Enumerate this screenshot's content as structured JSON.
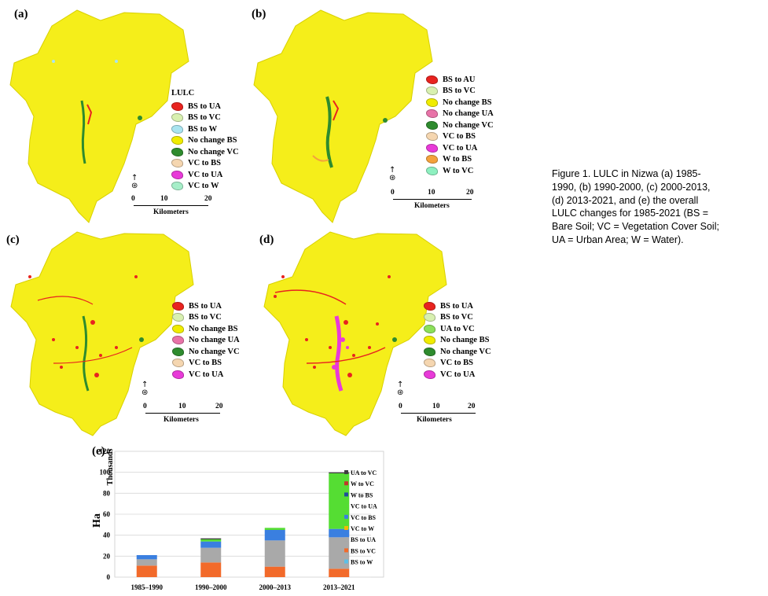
{
  "caption": "Figure 1. LULC in Nizwa (a) 1985-1990, (b) 1990-2000, (c) 2000-2013, (d) 2013-2021, and (e) the overall LULC changes for 1985-2021 (BS = Bare Soil; VC = Vegetation Cover Soil; UA = Urban Area; W = Water).",
  "colors": {
    "map_base": "#f5ee1a",
    "BS to UA": "#e8231f",
    "BS to AU": "#e8231f",
    "BS to VC": "#d8f0b0",
    "BS to W": "#a9e4f0",
    "No change BS": "#f0ec00",
    "No change VC": "#2e8b2e",
    "No change UA": "#e873a8",
    "VC to BS": "#f5d6b0",
    "VC to UA": "#e83ad8",
    "VC to W": "#a6eec8",
    "W to BS": "#f4a23c",
    "W to VC": "#8ef0c0",
    "UA to VC": "#8ce05a"
  },
  "maps": [
    {
      "label": "(a)",
      "legend_title": "LULC",
      "legend": [
        "BS to UA",
        "BS to VC",
        "BS to W",
        "No change BS",
        "No change VC",
        "VC to BS",
        "VC to UA",
        "VC to W"
      ],
      "scale_ticks": [
        "0",
        "10",
        "20"
      ],
      "scale_unit": "Kilometers"
    },
    {
      "label": "(b)",
      "legend_title": "",
      "legend": [
        "BS to AU",
        "BS to VC",
        "No change BS",
        "No change UA",
        "No change VC",
        "VC to BS",
        "VC to UA",
        "W to BS",
        "W to VC"
      ],
      "scale_ticks": [
        "0",
        "10",
        "20"
      ],
      "scale_unit": "Kilometers"
    },
    {
      "label": "(c)",
      "legend_title": "",
      "legend": [
        "BS to UA",
        "BS to VC",
        "No change BS",
        "No change UA",
        "No change VC",
        "VC to BS",
        "VC to UA"
      ],
      "scale_ticks": [
        "0",
        "10",
        "20"
      ],
      "scale_unit": "Kilometers"
    },
    {
      "label": "(d)",
      "legend_title": "",
      "legend": [
        "BS to UA",
        "BS to VC",
        "UA to VC",
        "No change BS",
        "No change VC",
        "VC to BS",
        "VC to UA"
      ],
      "scale_ticks": [
        "0",
        "10",
        "20"
      ],
      "scale_unit": "Kilometers"
    }
  ],
  "chart_data": {
    "label": "(e)",
    "type": "bar",
    "stacked": true,
    "categories": [
      "1985–1990",
      "1990–2000",
      "2000–2013",
      "2013–2021"
    ],
    "ylabel": "Ha",
    "yunit": "Thousands",
    "ylim": [
      0,
      120
    ],
    "yticks": [
      0,
      20,
      40,
      60,
      80,
      100,
      120
    ],
    "legend_position": "right",
    "series": [
      {
        "name": "BS to W",
        "color": "#5bc0e8",
        "values": [
          0,
          0,
          0,
          0
        ]
      },
      {
        "name": "BS to VC",
        "color": "#f26a2a",
        "values": [
          11,
          14,
          10,
          8
        ]
      },
      {
        "name": "BS to UA",
        "color": "#a9a9a9",
        "values": [
          6,
          14,
          25,
          30
        ]
      },
      {
        "name": "VC to W",
        "color": "#f5b800",
        "values": [
          0,
          0,
          0,
          0
        ]
      },
      {
        "name": "VC to BS",
        "color": "#3a7fe0",
        "values": [
          4,
          6,
          10,
          8
        ]
      },
      {
        "name": "VC to UA",
        "color": "#55dd33",
        "values": [
          0,
          2,
          2,
          53
        ]
      },
      {
        "name": "W to BS",
        "color": "#1f4e9e",
        "values": [
          0,
          0,
          0,
          0
        ]
      },
      {
        "name": "W to VC",
        "color": "#c0392b",
        "values": [
          0,
          0,
          0,
          0
        ]
      },
      {
        "name": "UA to VC",
        "color": "#404040",
        "values": [
          0,
          1,
          0,
          1
        ]
      }
    ],
    "legend_order": [
      "UA to VC",
      "W to VC",
      "W to BS",
      "VC to UA",
      "VC to BS",
      "VC to W",
      "BS to UA",
      "BS to VC",
      "BS to W"
    ]
  }
}
